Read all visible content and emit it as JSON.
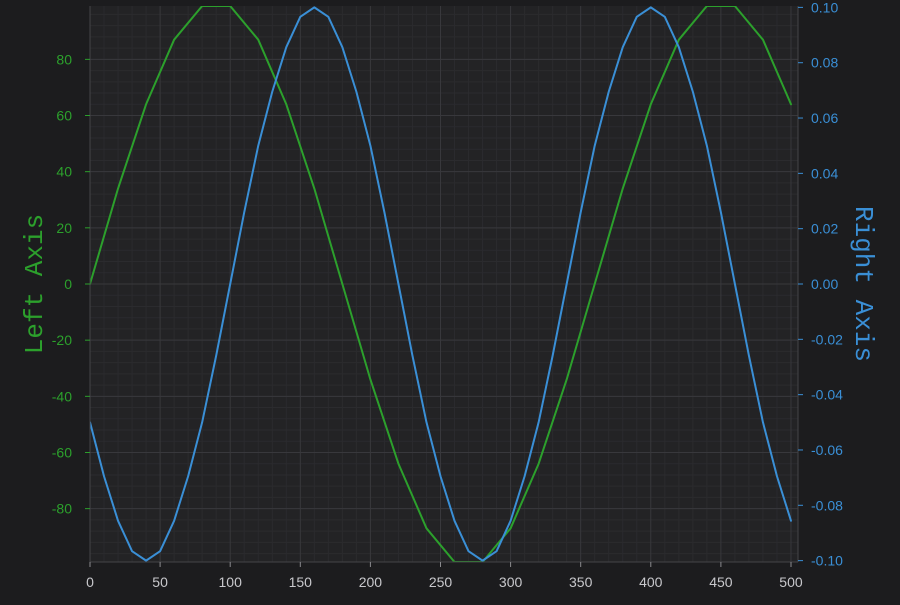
{
  "chart_data": {
    "type": "line",
    "background": "#1c1c1e",
    "plot_background": "#232325",
    "grid": true,
    "x": {
      "lim": [
        0,
        505
      ],
      "ticks": [
        0,
        50,
        100,
        150,
        200,
        250,
        300,
        350,
        400,
        450,
        500
      ],
      "tick_labels": [
        "0",
        "50",
        "100",
        "150",
        "200",
        "250",
        "300",
        "350",
        "400",
        "450",
        "500"
      ]
    },
    "left_axis": {
      "label": "Left Axis",
      "color": "#2ca02c",
      "lim": [
        -99,
        99
      ],
      "ticks": [
        -80,
        -60,
        -40,
        -20,
        0,
        20,
        40,
        60,
        80
      ],
      "tick_labels": [
        "-80",
        "-60",
        "-40",
        "-20",
        "0",
        "20",
        "40",
        "60",
        "80"
      ]
    },
    "right_axis": {
      "label": "Right Axis",
      "color": "#3a8fd6",
      "lim": [
        -0.1005,
        0.1005
      ],
      "ticks": [
        -0.1,
        -0.08,
        -0.06,
        -0.04,
        -0.02,
        0,
        0.02,
        0.04,
        0.06,
        0.08,
        0.1
      ],
      "tick_labels": [
        "-0.10",
        "-0.08",
        "-0.06",
        "-0.04",
        "-0.02",
        "0.00",
        "0.02",
        "0.04",
        "0.06",
        "0.08",
        "0.10"
      ]
    },
    "series": [
      {
        "axis": "left",
        "color": "#2ca02c",
        "x": [
          0,
          20,
          40,
          60,
          80,
          100,
          120,
          140,
          160,
          180,
          200,
          220,
          240,
          260,
          280,
          300,
          320,
          340,
          360,
          380,
          400,
          420,
          440,
          460,
          480,
          500
        ],
        "y": [
          0,
          34,
          64,
          87,
          99,
          99,
          87,
          64,
          34,
          0,
          -34,
          -64,
          -87,
          -99,
          -99,
          -87,
          -64,
          -34,
          0,
          34,
          64,
          87,
          99,
          99,
          87,
          64
        ]
      },
      {
        "axis": "right",
        "color": "#3a8fd6",
        "x": [
          0,
          10,
          20,
          30,
          40,
          50,
          60,
          70,
          80,
          90,
          100,
          110,
          120,
          130,
          140,
          150,
          160,
          170,
          180,
          190,
          200,
          210,
          220,
          230,
          240,
          250,
          260,
          270,
          280,
          290,
          300,
          310,
          320,
          330,
          340,
          350,
          360,
          370,
          380,
          390,
          400,
          410,
          420,
          430,
          440,
          450,
          460,
          470,
          480,
          490,
          500
        ],
        "y": [
          -0.05,
          -0.0695,
          -0.0856,
          -0.0966,
          -0.1,
          -0.0966,
          -0.0856,
          -0.0695,
          -0.05,
          -0.0259,
          0,
          0.0259,
          0.05,
          0.0695,
          0.0856,
          0.0966,
          0.1,
          0.0966,
          0.0856,
          0.0695,
          0.05,
          0.0259,
          0,
          -0.0259,
          -0.05,
          -0.0695,
          -0.0856,
          -0.0966,
          -0.1,
          -0.0966,
          -0.0856,
          -0.0695,
          -0.05,
          -0.0259,
          0,
          0.0259,
          0.05,
          0.0695,
          0.0856,
          0.0966,
          0.1,
          0.0966,
          0.0856,
          0.0695,
          0.05,
          0.0259,
          0,
          -0.0259,
          -0.05,
          -0.0695,
          -0.0856
        ]
      }
    ]
  }
}
